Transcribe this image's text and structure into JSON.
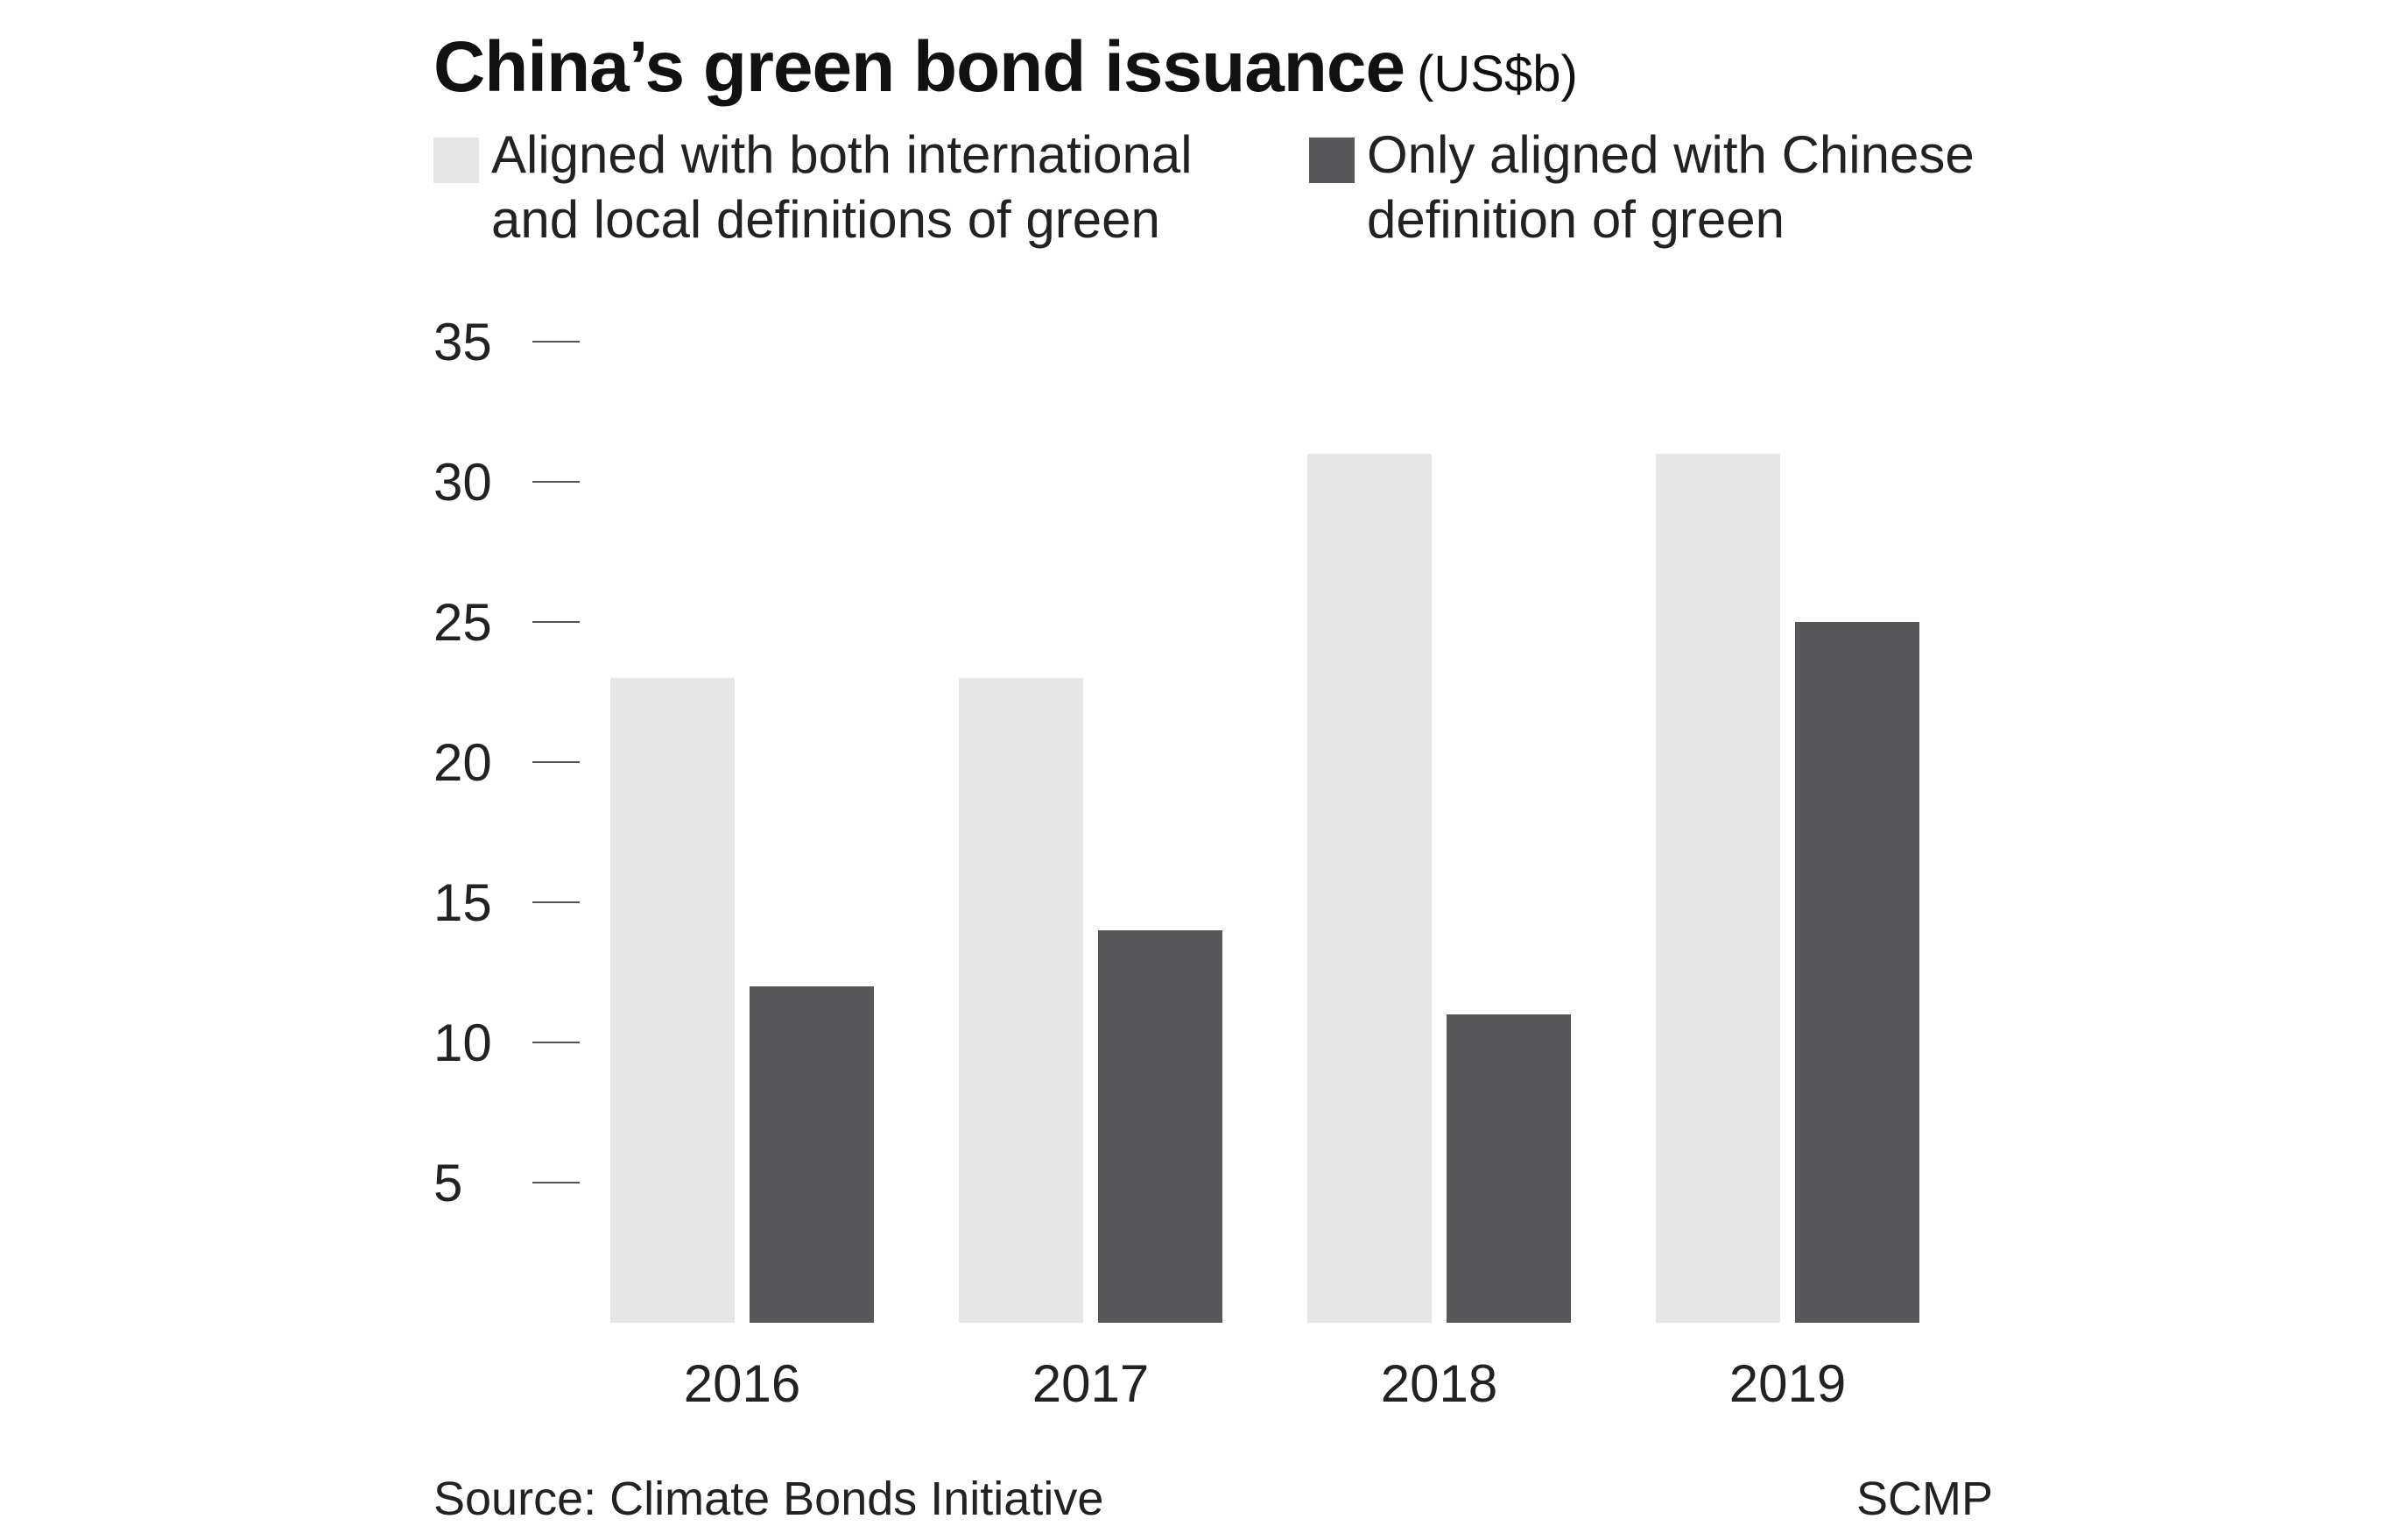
{
  "title": "China’s green bond issuance",
  "title_unit": "(US$b)",
  "legend": [
    {
      "lines": [
        "Aligned with both international",
        "and local definitions of green"
      ],
      "color": "#e6e6e6"
    },
    {
      "lines": [
        "Only aligned with Chinese",
        "definition of green"
      ],
      "color": "#58585a"
    }
  ],
  "chart_data": {
    "type": "bar",
    "categories": [
      "2016",
      "2017",
      "2018",
      "2019"
    ],
    "series": [
      {
        "values": [
          23,
          23,
          31,
          31
        ],
        "color": "#e6e6e6"
      },
      {
        "values": [
          12,
          14,
          11,
          25
        ],
        "color": "#58585a"
      }
    ],
    "yticks": [
      5,
      10,
      15,
      20,
      25,
      30,
      35
    ],
    "ylim": [
      0,
      35
    ],
    "grid": false,
    "legend_position": "top-left"
  },
  "footer": {
    "source": "Source: Climate Bonds Initiative",
    "credit": "SCMP"
  }
}
